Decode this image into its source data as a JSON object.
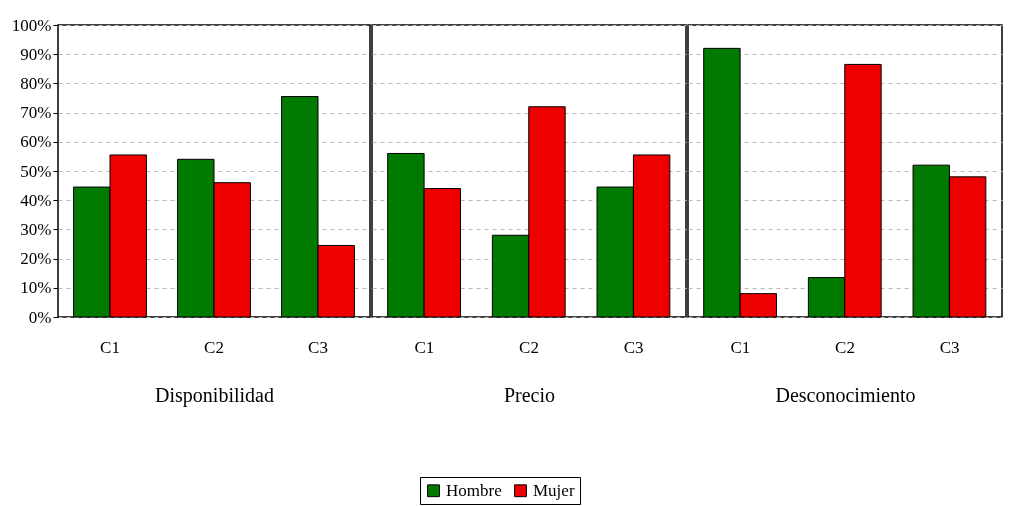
{
  "chart_data": [
    {
      "type": "bar",
      "xlabel": "Disponibilidad",
      "categories": [
        "C1",
        "C2",
        "C3"
      ],
      "series": [
        {
          "name": "Hombre",
          "color": "#007a00",
          "values": [
            44.5,
            54,
            75.5
          ]
        },
        {
          "name": "Mujer",
          "color": "#ee0000",
          "values": [
            55.5,
            46,
            24.5
          ]
        }
      ],
      "ylim": [
        0,
        100
      ],
      "yticks": [
        {
          "value": 0,
          "label": "0%"
        },
        {
          "value": 10,
          "label": "10%"
        },
        {
          "value": 20,
          "label": "20%"
        },
        {
          "value": 30,
          "label": "30%"
        },
        {
          "value": 40,
          "label": "40%"
        },
        {
          "value": 50,
          "label": "50%"
        },
        {
          "value": 60,
          "label": "60%"
        },
        {
          "value": 70,
          "label": "70%"
        },
        {
          "value": 80,
          "label": "80%"
        },
        {
          "value": 90,
          "label": "90%"
        },
        {
          "value": 100,
          "label": "100%"
        }
      ],
      "grid": "y",
      "legend": "bottom"
    },
    {
      "type": "bar",
      "xlabel": "Precio",
      "categories": [
        "C1",
        "C2",
        "C3"
      ],
      "series": [
        {
          "name": "Hombre",
          "color": "#007a00",
          "values": [
            56,
            28,
            44.5
          ]
        },
        {
          "name": "Mujer",
          "color": "#ee0000",
          "values": [
            44,
            72,
            55.5
          ]
        }
      ],
      "ylim": [
        0,
        100
      ],
      "yticks": [
        0,
        10,
        20,
        30,
        40,
        50,
        60,
        70,
        80,
        90,
        100
      ],
      "grid": "y",
      "legend": "bottom",
      "tick_labels": "x"
    },
    {
      "type": "bar",
      "xlabel": "Desconocimiento",
      "categories": [
        "C1",
        "C2",
        "C3"
      ],
      "series": [
        {
          "name": "Hombre",
          "color": "#007a00",
          "values": [
            92,
            13.5,
            52
          ]
        },
        {
          "name": "Mujer",
          "color": "#ee0000",
          "values": [
            8,
            86.5,
            48
          ]
        }
      ],
      "ylim": [
        0,
        100
      ],
      "yticks": [
        0,
        10,
        20,
        30,
        40,
        50,
        60,
        70,
        80,
        90,
        100
      ],
      "grid": "y",
      "legend": "bottom",
      "tick_labels": "x"
    }
  ]
}
